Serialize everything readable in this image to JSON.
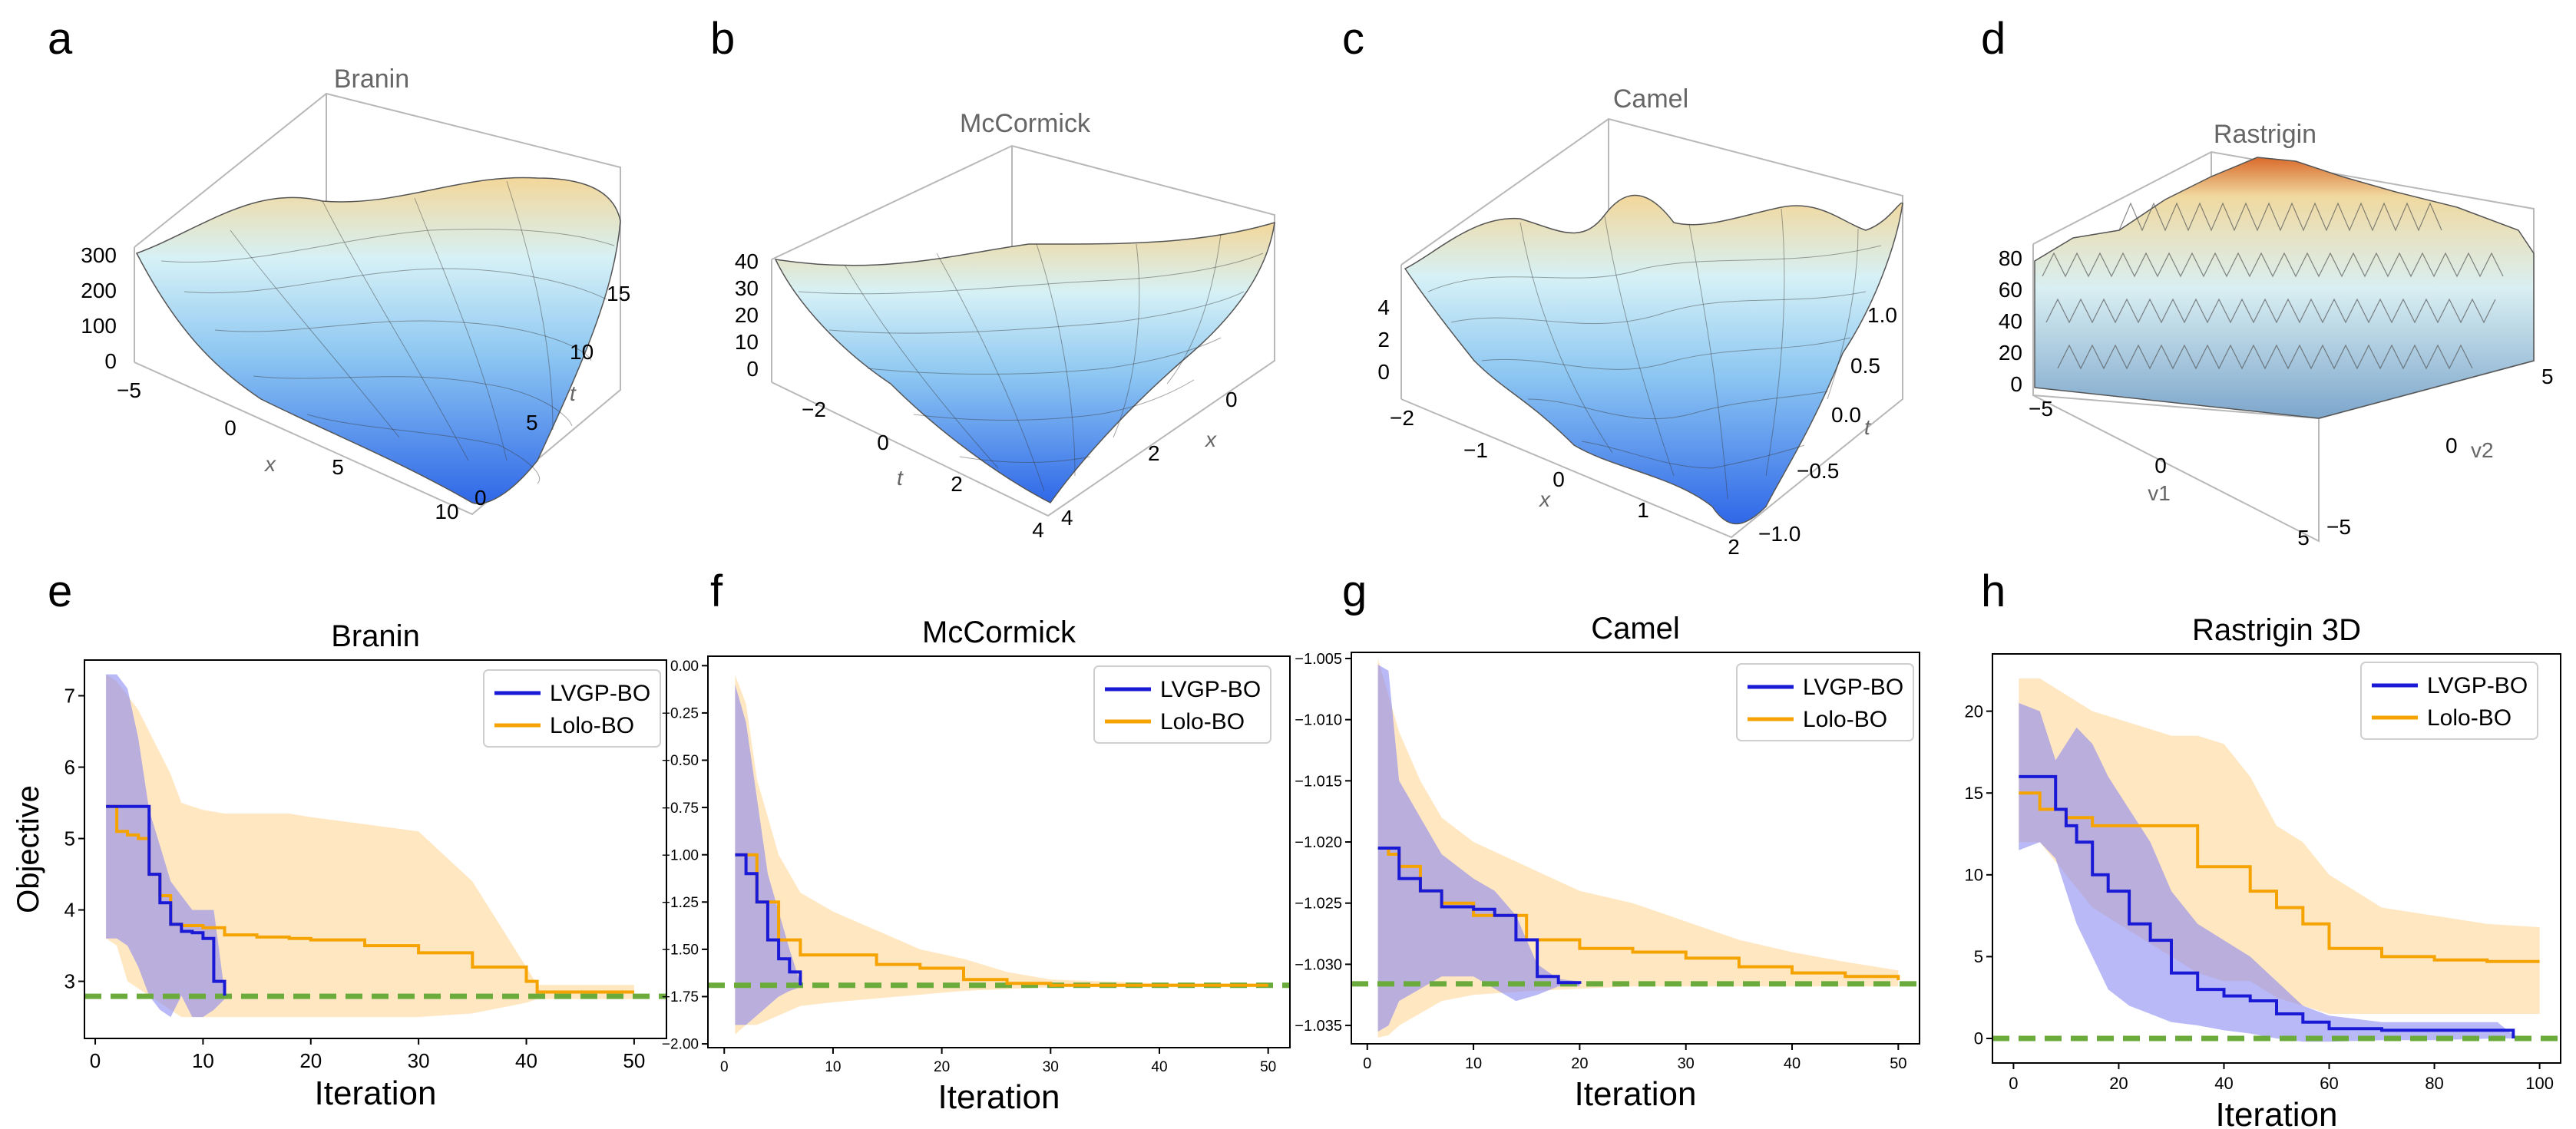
{
  "colors": {
    "lvgp": "#1a1ad6",
    "lolo": "#f5a300",
    "lvgp_band": "#7f7ff2",
    "lolo_band": "#ffd79a",
    "optimum": "#6aab3b",
    "surf_low": "#2f67e8",
    "surf_mid": "#c4eef8",
    "surf_high": "#d96a2a"
  },
  "legend": {
    "lvgp": "LVGP-BO",
    "lolo": "Lolo-BO"
  },
  "surfaces": [
    {
      "letter": "a",
      "title": "Branin",
      "z_ticks": [
        "300",
        "200",
        "100",
        "0"
      ],
      "axis1_label": "x",
      "axis1_ticks": [
        "−5",
        "0",
        "5",
        "10"
      ],
      "axis2_label": "t",
      "axis2_ticks": [
        "0",
        "5",
        "10",
        "15"
      ]
    },
    {
      "letter": "b",
      "title": "McCormick",
      "z_ticks": [
        "40",
        "30",
        "20",
        "10",
        "0"
      ],
      "axis1_label": "t",
      "axis1_ticks": [
        "−2",
        "0",
        "2",
        "4"
      ],
      "axis2_label": "x",
      "axis2_ticks": [
        "4",
        "2",
        "0"
      ]
    },
    {
      "letter": "c",
      "title": "Camel",
      "z_ticks": [
        "4",
        "2",
        "0"
      ],
      "axis1_label": "x",
      "axis1_ticks": [
        "−2",
        "−1",
        "0",
        "1",
        "2"
      ],
      "axis2_label": "t",
      "axis2_ticks": [
        "−1.0",
        "−0.5",
        "0.0",
        "0.5",
        "1.0"
      ]
    },
    {
      "letter": "d",
      "title": "Rastrigin",
      "z_ticks": [
        "80",
        "60",
        "40",
        "20",
        "0"
      ],
      "axis1_label": "v1",
      "axis1_ticks": [
        "−5",
        "0",
        "5"
      ],
      "axis2_label": "v2",
      "axis2_ticks": [
        "−5",
        "0",
        "5"
      ]
    }
  ],
  "chart_data": [
    {
      "letter": "e",
      "type": "line",
      "title": "Branin",
      "xlabel": "Iteration",
      "ylabel": "Objective",
      "xlim": [
        -1,
        53
      ],
      "ylim": [
        2.2,
        7.5
      ],
      "xticks": [
        0,
        10,
        20,
        30,
        40,
        50
      ],
      "xtick_labels": [
        "0",
        "10",
        "20",
        "30",
        "40",
        "50"
      ],
      "yticks": [
        3,
        4,
        5,
        6,
        7
      ],
      "ytick_labels": [
        "3",
        "4",
        "5",
        "6",
        "7"
      ],
      "optimum": 2.79,
      "series": [
        {
          "name": "LVGP-BO",
          "x": [
            1,
            2,
            3,
            4,
            5,
            6,
            7,
            8,
            9,
            10,
            11,
            12
          ],
          "y": [
            5.45,
            5.45,
            5.45,
            5.45,
            4.5,
            4.1,
            3.8,
            3.7,
            3.68,
            3.6,
            3.0,
            2.8
          ],
          "upper": [
            7.3,
            7.3,
            7.1,
            6.4,
            5.4,
            4.9,
            4.4,
            4.2,
            4.0,
            4.0,
            4.0,
            2.85
          ],
          "lower": [
            3.6,
            3.6,
            3.5,
            3.2,
            2.8,
            2.6,
            2.5,
            2.8,
            2.5,
            2.5,
            2.6,
            2.75
          ]
        },
        {
          "name": "Lolo-BO",
          "x": [
            1,
            2,
            3,
            4,
            5,
            6,
            7,
            8,
            10,
            12,
            15,
            18,
            20,
            25,
            30,
            35,
            40,
            41,
            45,
            50
          ],
          "y": [
            5.45,
            5.1,
            5.05,
            5.0,
            4.5,
            4.2,
            3.8,
            3.78,
            3.75,
            3.65,
            3.62,
            3.6,
            3.58,
            3.5,
            3.4,
            3.2,
            3.0,
            2.85,
            2.85,
            2.85
          ],
          "upper": [
            7.3,
            7.2,
            7.0,
            6.8,
            6.5,
            6.2,
            5.9,
            5.5,
            5.4,
            5.35,
            5.35,
            5.35,
            5.3,
            5.2,
            5.1,
            4.4,
            3.2,
            2.95,
            2.95,
            2.95
          ],
          "lower": [
            3.6,
            3.5,
            3.0,
            2.9,
            2.8,
            2.7,
            2.6,
            2.5,
            2.5,
            2.5,
            2.5,
            2.5,
            2.5,
            2.5,
            2.5,
            2.55,
            2.7,
            2.75,
            2.75,
            2.75
          ]
        }
      ]
    },
    {
      "letter": "f",
      "type": "line",
      "title": "McCormick",
      "xlabel": "Iteration",
      "ylabel": "",
      "xlim": [
        -1.5,
        52
      ],
      "ylim": [
        -2.02,
        0.05
      ],
      "xticks": [
        0,
        10,
        20,
        30,
        40,
        50
      ],
      "xtick_labels": [
        "0",
        "10",
        "20",
        "30",
        "40",
        "50"
      ],
      "yticks": [
        0,
        -0.25,
        -0.5,
        -0.75,
        -1.0,
        -1.25,
        -1.5,
        -1.75,
        -2.0
      ],
      "ytick_labels": [
        "0.00",
        "−0.25",
        "−0.50",
        "−0.75",
        "−1.00",
        "−1.25",
        "−1.50",
        "−1.75",
        "−2.00"
      ],
      "optimum": -1.69,
      "series": [
        {
          "name": "LVGP-BO",
          "x": [
            1,
            2,
            3,
            4,
            5,
            6,
            7
          ],
          "y": [
            -1.0,
            -1.1,
            -1.25,
            -1.45,
            -1.55,
            -1.62,
            -1.69
          ],
          "upper": [
            -0.1,
            -0.3,
            -0.7,
            -1.1,
            -1.3,
            -1.5,
            -1.68
          ],
          "lower": [
            -1.9,
            -1.9,
            -1.85,
            -1.8,
            -1.75,
            -1.72,
            -1.7
          ]
        },
        {
          "name": "Lolo-BO",
          "x": [
            1,
            2,
            3,
            5,
            7,
            10,
            14,
            18,
            22,
            26,
            30,
            40,
            50
          ],
          "y": [
            -1.0,
            -1.0,
            -1.25,
            -1.45,
            -1.53,
            -1.53,
            -1.58,
            -1.6,
            -1.66,
            -1.68,
            -1.69,
            -1.69,
            -1.69
          ],
          "upper": [
            -0.05,
            -0.2,
            -0.6,
            -1.0,
            -1.2,
            -1.3,
            -1.4,
            -1.5,
            -1.55,
            -1.62,
            -1.66,
            -1.68,
            -1.68
          ],
          "lower": [
            -1.95,
            -1.9,
            -1.9,
            -1.85,
            -1.8,
            -1.78,
            -1.76,
            -1.74,
            -1.72,
            -1.71,
            -1.7,
            -1.7,
            -1.7
          ]
        }
      ]
    },
    {
      "letter": "g",
      "type": "line",
      "title": "Camel",
      "xlabel": "Iteration",
      "ylabel": "",
      "xlim": [
        -1.5,
        52
      ],
      "ylim": [
        -1.0365,
        -1.0045
      ],
      "xticks": [
        0,
        10,
        20,
        30,
        40,
        50
      ],
      "xtick_labels": [
        "0",
        "10",
        "20",
        "30",
        "40",
        "50"
      ],
      "yticks": [
        -1.005,
        -1.01,
        -1.015,
        -1.02,
        -1.025,
        -1.03,
        -1.035
      ],
      "ytick_labels": [
        "−1.005",
        "−1.010",
        "−1.015",
        "−1.020",
        "−1.025",
        "−1.030",
        "−1.035"
      ],
      "optimum": -1.0316,
      "series": [
        {
          "name": "LVGP-BO",
          "x": [
            1,
            2,
            3,
            5,
            7,
            10,
            12,
            14,
            16,
            18,
            20
          ],
          "y": [
            -1.0205,
            -1.0205,
            -1.023,
            -1.024,
            -1.0253,
            -1.0255,
            -1.026,
            -1.028,
            -1.031,
            -1.0315,
            -1.0316
          ],
          "upper": [
            -1.0055,
            -1.006,
            -1.015,
            -1.018,
            -1.021,
            -1.023,
            -1.024,
            -1.026,
            -1.03,
            -1.0312,
            -1.0314
          ],
          "lower": [
            -1.0355,
            -1.035,
            -1.033,
            -1.032,
            -1.031,
            -1.031,
            -1.032,
            -1.033,
            -1.0325,
            -1.0318,
            -1.0318
          ]
        },
        {
          "name": "Lolo-BO",
          "x": [
            1,
            2,
            3,
            5,
            7,
            10,
            15,
            20,
            25,
            30,
            35,
            40,
            45,
            50
          ],
          "y": [
            -1.0205,
            -1.021,
            -1.022,
            -1.024,
            -1.025,
            -1.026,
            -1.028,
            -1.0287,
            -1.029,
            -1.0295,
            -1.0302,
            -1.0307,
            -1.031,
            -1.0313
          ],
          "upper": [
            -1.005,
            -1.008,
            -1.011,
            -1.015,
            -1.018,
            -1.02,
            -1.022,
            -1.024,
            -1.025,
            -1.0265,
            -1.028,
            -1.029,
            -1.0298,
            -1.0305
          ],
          "lower": [
            -1.036,
            -1.0358,
            -1.035,
            -1.034,
            -1.033,
            -1.0325,
            -1.0322,
            -1.032,
            -1.0318,
            -1.0318,
            -1.0318,
            -1.0318,
            -1.0318,
            -1.0318
          ]
        }
      ]
    },
    {
      "letter": "h",
      "type": "line",
      "title": "Rastrigin 3D",
      "xlabel": "Iteration",
      "ylabel": "",
      "xlim": [
        -4,
        104
      ],
      "ylim": [
        -1.5,
        23.5
      ],
      "xticks": [
        0,
        20,
        40,
        60,
        80,
        100
      ],
      "xtick_labels": [
        "0",
        "20",
        "40",
        "60",
        "80",
        "100"
      ],
      "yticks": [
        0,
        5,
        10,
        15,
        20
      ],
      "ytick_labels": [
        "0",
        "5",
        "10",
        "15",
        "20"
      ],
      "optimum": 0,
      "series": [
        {
          "name": "LVGP-BO",
          "x": [
            1,
            5,
            8,
            10,
            12,
            15,
            18,
            22,
            26,
            30,
            35,
            40,
            45,
            50,
            55,
            60,
            70,
            80,
            92,
            95
          ],
          "y": [
            16,
            16,
            14,
            13,
            12,
            10,
            9,
            7,
            6,
            4,
            3,
            2.6,
            2.3,
            1.5,
            1,
            0.6,
            0.5,
            0.5,
            0.5,
            0
          ],
          "upper": [
            20.5,
            20,
            17,
            18,
            19,
            18,
            16,
            14,
            12,
            9,
            7,
            6,
            5,
            3.5,
            2,
            1.4,
            1,
            1,
            1,
            0.2
          ],
          "lower": [
            11.5,
            12,
            11,
            9,
            7,
            5,
            3,
            2,
            1.5,
            1,
            0.8,
            0.5,
            0.3,
            0,
            -0.2,
            -0.2,
            -0.1,
            -0.1,
            0,
            0
          ]
        },
        {
          "name": "Lolo-BO",
          "x": [
            1,
            5,
            10,
            15,
            20,
            25,
            30,
            35,
            40,
            45,
            50,
            55,
            60,
            65,
            70,
            80,
            90,
            100
          ],
          "y": [
            15,
            14,
            13.5,
            13,
            13,
            13,
            13,
            10.5,
            10.5,
            9,
            8,
            7,
            5.5,
            5.5,
            5,
            4.8,
            4.7,
            4.7
          ],
          "upper": [
            22,
            22,
            21,
            20,
            19.5,
            19,
            18.5,
            18.5,
            18,
            16,
            13,
            12,
            10,
            9,
            8,
            7.5,
            7,
            6.8
          ],
          "lower": [
            12,
            12,
            10,
            8,
            7,
            6,
            5,
            4,
            3.5,
            3.5,
            2.5,
            2,
            1.5,
            1.5,
            1.5,
            1.5,
            1.5,
            1.5
          ]
        }
      ]
    }
  ]
}
